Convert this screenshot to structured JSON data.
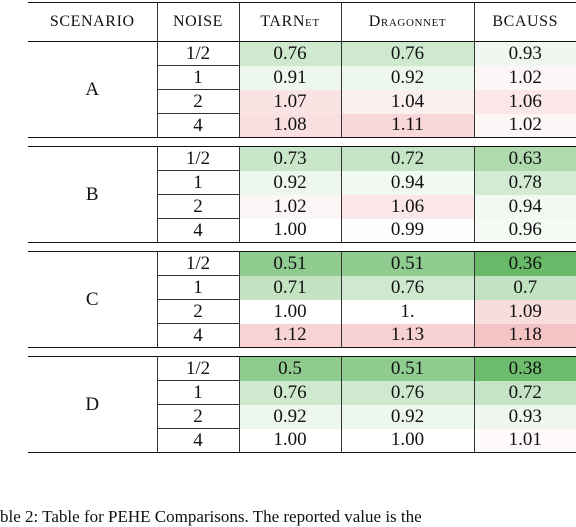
{
  "headers": {
    "scenario": "SCENARIO",
    "noise": "NOISE",
    "tarnet": "TARNet",
    "dragonnet": "Dragonnet",
    "bcauss": "BCAUSS"
  },
  "scenarios": [
    {
      "name": "A",
      "rows": [
        {
          "noise": "1/2",
          "tarnet": "0.76",
          "dragonnet": "0.76",
          "bcauss": "0.93",
          "bg": [
            "#cfe9cf",
            "#cfe9cf",
            "#f0f7f0"
          ]
        },
        {
          "noise": "1",
          "tarnet": "0.91",
          "dragonnet": "0.92",
          "bcauss": "1.02",
          "bg": [
            "#edf7ed",
            "#eef7ee",
            "#fcf6f6"
          ]
        },
        {
          "noise": "2",
          "tarnet": "1.07",
          "dragonnet": "1.04",
          "bcauss": "1.06",
          "bg": [
            "#fae3e3",
            "#fbeeee",
            "#fbe7e7"
          ]
        },
        {
          "noise": "4",
          "tarnet": "1.08",
          "dragonnet": "1.11",
          "bcauss": "1.02",
          "bg": [
            "#f9dfe0",
            "#f8d7d8",
            "#fcf6f6"
          ]
        }
      ]
    },
    {
      "name": "B",
      "rows": [
        {
          "noise": "1/2",
          "tarnet": "0.73",
          "dragonnet": "0.72",
          "bcauss": "0.63",
          "bg": [
            "#c9e6c9",
            "#c5e4c5",
            "#aedaae"
          ]
        },
        {
          "noise": "1",
          "tarnet": "0.92",
          "dragonnet": "0.94",
          "bcauss": "0.78",
          "bg": [
            "#eef7ee",
            "#f2f9f2",
            "#d3ebd3"
          ]
        },
        {
          "noise": "2",
          "tarnet": "1.02",
          "dragonnet": "1.06",
          "bcauss": "0.94",
          "bg": [
            "#fcf6f6",
            "#fbe7e7",
            "#f2f9f2"
          ]
        },
        {
          "noise": "4",
          "tarnet": "1.00",
          "dragonnet": "0.99",
          "bcauss": "0.96",
          "bg": [
            "#ffffff",
            "#fdfefd",
            "#f6fbf6"
          ]
        }
      ]
    },
    {
      "name": "C",
      "rows": [
        {
          "noise": "1/2",
          "tarnet": "0.51",
          "dragonnet": "0.51",
          "bcauss": "0.36",
          "bg": [
            "#90cc90",
            "#90cc90",
            "#68ba68"
          ]
        },
        {
          "noise": "1",
          "tarnet": "0.71",
          "dragonnet": "0.76",
          "bcauss": "0.7",
          "bg": [
            "#c3e3c3",
            "#cfe9cf",
            "#c1e2c1"
          ]
        },
        {
          "noise": "2",
          "tarnet": "1.00",
          "dragonnet": "1.",
          "bcauss": "1.09",
          "bg": [
            "#ffffff",
            "#ffffff",
            "#f9dcdc"
          ]
        },
        {
          "noise": "4",
          "tarnet": "1.12",
          "dragonnet": "1.13",
          "bcauss": "1.18",
          "bg": [
            "#f7d3d4",
            "#f7d0d1",
            "#f4c4c5"
          ]
        }
      ]
    },
    {
      "name": "D",
      "rows": [
        {
          "noise": "1/2",
          "tarnet": "0.5",
          "dragonnet": "0.51",
          "bcauss": "0.38",
          "bg": [
            "#8fcb8f",
            "#90cc90",
            "#6dbc6d"
          ]
        },
        {
          "noise": "1",
          "tarnet": "0.76",
          "dragonnet": "0.76",
          "bcauss": "0.72",
          "bg": [
            "#cfe9cf",
            "#cfe9cf",
            "#c5e4c5"
          ]
        },
        {
          "noise": "2",
          "tarnet": "0.92",
          "dragonnet": "0.92",
          "bcauss": "0.93",
          "bg": [
            "#eef7ee",
            "#eef7ee",
            "#f0f7f0"
          ]
        },
        {
          "noise": "4",
          "tarnet": "1.00",
          "dragonnet": "1.00",
          "bcauss": "1.01",
          "bg": [
            "#ffffff",
            "#ffffff",
            "#fefafa"
          ]
        }
      ]
    }
  ],
  "caption": "ble 2: Table for PEHE Comparisons. The reported value is the"
}
